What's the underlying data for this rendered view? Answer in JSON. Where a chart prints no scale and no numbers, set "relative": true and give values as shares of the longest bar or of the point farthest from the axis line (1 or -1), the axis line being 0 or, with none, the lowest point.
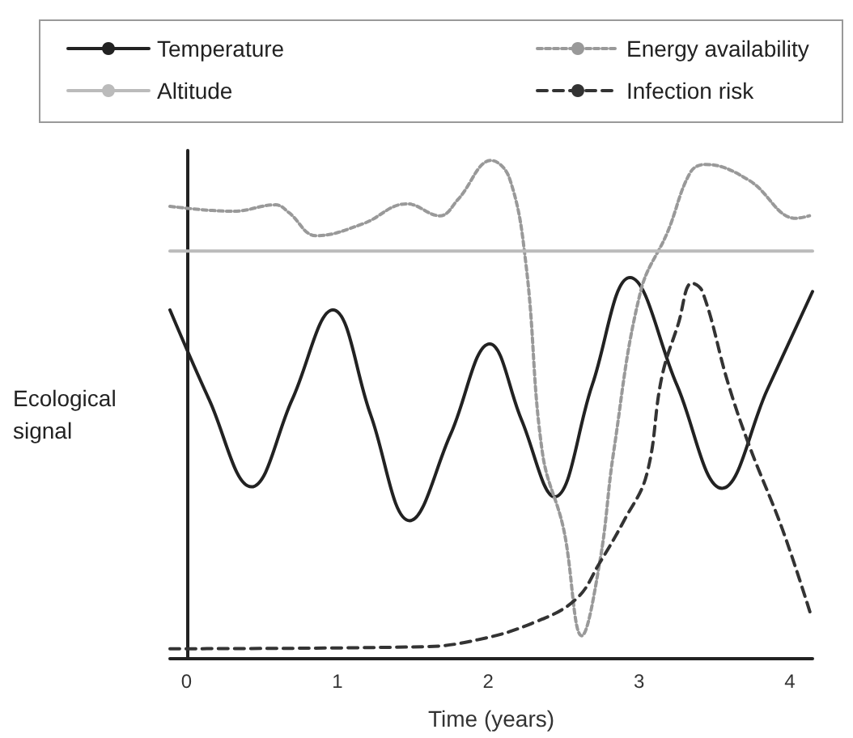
{
  "chart_data": {
    "type": "line",
    "relative": true,
    "xlabel": "Time (years)",
    "ylabel": "Ecological signal",
    "xlim": [
      -0.11,
      4.15
    ],
    "xticks": [
      0,
      1,
      2,
      3,
      4
    ],
    "grid": false,
    "legend": "top",
    "marker": "none",
    "series": [
      {
        "name": "Temperature",
        "color": "#222222",
        "line_style": "solid",
        "x": [
          -0.11,
          0.15,
          0.43,
          0.7,
          0.97,
          1.22,
          1.48,
          1.75,
          2.01,
          2.22,
          2.44,
          2.69,
          2.94,
          3.25,
          3.55,
          3.85,
          4.15
        ],
        "values": [
          0.7,
          0.52,
          0.345,
          0.52,
          0.7,
          0.49,
          0.277,
          0.45,
          0.632,
          0.48,
          0.325,
          0.55,
          0.765,
          0.55,
          0.342,
          0.54,
          0.737
        ]
      },
      {
        "name": "Energy availability",
        "color": "#999999",
        "line_style": "dotted",
        "x": [
          -0.11,
          0.31,
          0.59,
          0.68,
          0.86,
          1.17,
          1.46,
          1.68,
          1.8,
          2.02,
          2.14,
          2.25,
          2.36,
          2.5,
          2.62,
          2.74,
          2.83,
          3.01,
          3.19,
          3.34,
          3.44,
          3.73,
          4.04,
          4.13
        ],
        "values": [
          0.908,
          0.898,
          0.911,
          0.895,
          0.849,
          0.873,
          0.913,
          0.889,
          0.922,
          1.0,
          0.965,
          0.792,
          0.412,
          0.26,
          0.046,
          0.195,
          0.412,
          0.737,
          0.857,
          0.976,
          0.992,
          0.96,
          0.884,
          0.889
        ]
      },
      {
        "name": "Altitude",
        "color": "#bbbbbb",
        "line_style": "solid",
        "x": [
          -0.11,
          4.15
        ],
        "values": [
          0.818,
          0.818
        ]
      },
      {
        "name": "Infection risk",
        "color": "#333333",
        "line_style": "dashed",
        "x": [
          -0.11,
          1.57,
          1.93,
          2.29,
          2.58,
          2.74,
          2.9,
          3.05,
          3.15,
          3.26,
          3.35,
          3.42,
          3.59,
          3.73,
          3.95,
          4.14
        ],
        "values": [
          0.02,
          0.024,
          0.038,
          0.071,
          0.119,
          0.193,
          0.277,
          0.369,
          0.564,
          0.672,
          0.754,
          0.737,
          0.553,
          0.428,
          0.26,
          0.087
        ]
      }
    ]
  }
}
